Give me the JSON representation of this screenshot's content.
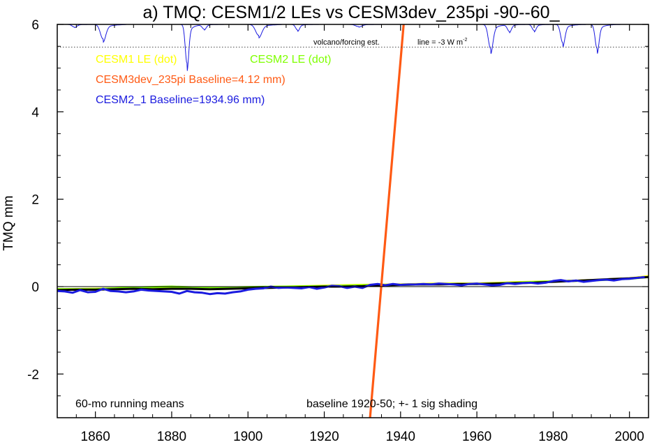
{
  "chart_data": {
    "type": "line",
    "title": "a) TMQ: CESM1/2 LEs vs CESM3dev_235pi -90--60_",
    "ylabel": "TMQ mm",
    "xlabel": "",
    "xlim": [
      1850,
      2005
    ],
    "ylim": [
      -3,
      6
    ],
    "x_ticks": [
      1860,
      1880,
      1900,
      1920,
      1940,
      1960,
      1980,
      2000
    ],
    "y_ticks": [
      -2,
      0,
      2,
      4,
      6
    ],
    "grid": false,
    "zero_line": 0,
    "legend": [
      {
        "label": "CESM1 LE (dot)",
        "color": "#ffff00"
      },
      {
        "label": "CESM2 LE (dot)",
        "color": "#7fff00"
      },
      {
        "label": "CESM3dev_235pi Baseline=4.12 mm)",
        "color": "#ff5a14"
      },
      {
        "label": "CESM2_1 Baseline=1934.96 mm)",
        "color": "#1a1adf"
      }
    ],
    "annotations": {
      "volcano_label": "volcano/forcing est.",
      "line_label": "line = -3 W m",
      "line_label_sup": "-2",
      "bottom_left": "60-mo running means",
      "bottom_center": "baseline 1920-50; +- 1 sig shading"
    },
    "volcano_reference_y": 5.48,
    "volcano_series": {
      "name": "volcano/forcing est.",
      "color": "#1a1adf",
      "baseline": 6.0,
      "dips": [
        {
          "year": 1854.5,
          "depth": 0.06,
          "width": 0.6
        },
        {
          "year": 1862,
          "depth": 0.33,
          "width": 0.7
        },
        {
          "year": 1884,
          "depth": 0.88,
          "width": 0.45
        },
        {
          "year": 1888.5,
          "depth": 0.1,
          "width": 0.5
        },
        {
          "year": 1902.8,
          "depth": 0.25,
          "width": 0.8
        },
        {
          "year": 1913,
          "depth": 0.13,
          "width": 0.5
        },
        {
          "year": 1929,
          "depth": 0.05,
          "width": 0.8
        },
        {
          "year": 1963.6,
          "depth": 0.55,
          "width": 0.6
        },
        {
          "year": 1968.5,
          "depth": 0.15,
          "width": 0.5
        },
        {
          "year": 1975,
          "depth": 0.14,
          "width": 0.5
        },
        {
          "year": 1982.5,
          "depth": 0.42,
          "width": 0.55
        },
        {
          "year": 1991.5,
          "depth": 0.55,
          "width": 0.5
        }
      ]
    },
    "series": [
      {
        "name": "CESM1 LE (dot)",
        "color": "#ffff00",
        "x": [
          1850,
          1860,
          1870,
          1880,
          1890,
          1900,
          1910,
          1920,
          1930,
          1940,
          1950,
          1960,
          1970,
          1980,
          1990,
          2000,
          2005
        ],
        "y": [
          -0.06,
          -0.05,
          -0.03,
          -0.01,
          -0.04,
          -0.02,
          0.0,
          0.02,
          0.04,
          0.05,
          0.07,
          0.07,
          0.1,
          0.12,
          0.15,
          0.19,
          0.24
        ]
      },
      {
        "name": "CESM2 LE (dot)",
        "color": "#7fff00",
        "x": [
          1850,
          1860,
          1870,
          1880,
          1890,
          1900,
          1910,
          1920,
          1930,
          1940,
          1950,
          1960,
          1970,
          1980,
          1990,
          2000,
          2005
        ],
        "y": [
          -0.06,
          -0.06,
          -0.02,
          -0.0,
          -0.03,
          -0.01,
          0.0,
          0.01,
          0.03,
          0.04,
          0.06,
          0.06,
          0.09,
          0.12,
          0.14,
          0.18,
          0.22
        ]
      },
      {
        "name": "CESM3dev_235pi Baseline=4.12 mm)",
        "color": "#ff5a14",
        "x": [
          1932,
          1940.8
        ],
        "y": [
          -3.0,
          6.0
        ]
      },
      {
        "name": "CESM2_1 Baseline=1934.96 mm)",
        "color": "#1a1adf",
        "x": [
          1850,
          1852,
          1854,
          1856,
          1858,
          1860,
          1862,
          1864,
          1866,
          1868,
          1870,
          1872,
          1874,
          1876,
          1878,
          1880,
          1882,
          1884,
          1886,
          1888,
          1890,
          1892,
          1894,
          1896,
          1898,
          1900,
          1902,
          1904,
          1906,
          1908,
          1910,
          1912,
          1914,
          1916,
          1918,
          1920,
          1922,
          1924,
          1926,
          1928,
          1930,
          1932,
          1934,
          1936,
          1938,
          1940,
          1942,
          1944,
          1946,
          1948,
          1950,
          1952,
          1954,
          1956,
          1958,
          1960,
          1962,
          1964,
          1966,
          1968,
          1970,
          1972,
          1974,
          1976,
          1978,
          1980,
          1982,
          1984,
          1986,
          1988,
          1990,
          1992,
          1994,
          1996,
          1998,
          2000,
          2002,
          2004
        ],
        "y": [
          -0.1,
          -0.11,
          -0.14,
          -0.08,
          -0.13,
          -0.12,
          -0.05,
          -0.1,
          -0.11,
          -0.13,
          -0.11,
          -0.07,
          -0.09,
          -0.1,
          -0.11,
          -0.12,
          -0.16,
          -0.1,
          -0.13,
          -0.14,
          -0.17,
          -0.15,
          -0.16,
          -0.13,
          -0.11,
          -0.07,
          -0.05,
          -0.04,
          0.0,
          -0.03,
          -0.02,
          -0.03,
          -0.04,
          -0.01,
          -0.05,
          -0.02,
          0.02,
          0.01,
          -0.03,
          0.0,
          -0.03,
          0.04,
          0.06,
          0.03,
          0.06,
          0.04,
          0.05,
          0.05,
          0.06,
          0.05,
          0.07,
          0.06,
          0.05,
          0.03,
          0.06,
          0.07,
          0.05,
          0.03,
          0.04,
          0.08,
          0.06,
          0.08,
          0.09,
          0.07,
          0.09,
          0.13,
          0.15,
          0.12,
          0.14,
          0.11,
          0.13,
          0.15,
          0.16,
          0.14,
          0.17,
          0.18,
          0.2,
          0.22
        ]
      },
      {
        "name": "",
        "color": "#000000",
        "x": [
          1850,
          1855,
          1860,
          1865,
          1870,
          1875,
          1880,
          1885,
          1890,
          1895,
          1900,
          1905,
          1910,
          1915,
          1920,
          1925,
          1930,
          1935,
          1940,
          1945,
          1950,
          1955,
          1960,
          1965,
          1970,
          1975,
          1980,
          1985,
          1990,
          1995,
          2000,
          2005
        ],
        "y": [
          -0.08,
          -0.07,
          -0.07,
          -0.06,
          -0.05,
          -0.06,
          -0.05,
          -0.05,
          -0.06,
          -0.05,
          -0.04,
          -0.03,
          -0.02,
          -0.01,
          0.0,
          0.0,
          0.01,
          0.03,
          0.04,
          0.05,
          0.05,
          0.06,
          0.06,
          0.07,
          0.08,
          0.09,
          0.11,
          0.13,
          0.15,
          0.17,
          0.19,
          0.22
        ]
      }
    ]
  }
}
